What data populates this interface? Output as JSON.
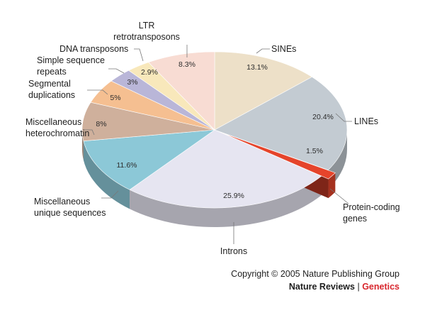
{
  "chart_data": {
    "type": "pie",
    "slices": [
      {
        "label": "SINEs",
        "value": 13.1,
        "value_label": "13.1%",
        "color": "#ede0c8"
      },
      {
        "label": "LINEs",
        "value": 20.4,
        "value_label": "20.4%",
        "color": "#c3cbd2"
      },
      {
        "label": "Protein-coding genes",
        "value": 1.5,
        "value_label": "1.5%",
        "color": "#e5442b"
      },
      {
        "label": "Introns",
        "value": 25.9,
        "value_label": "25.9%",
        "color": "#e6e5f1"
      },
      {
        "label": "Miscellaneous unique sequences",
        "value": 11.6,
        "value_label": "11.6%",
        "color": "#8cc8d7"
      },
      {
        "label": "Miscellaneous heterochromatin",
        "value": 8,
        "value_label": "8%",
        "color": "#cfb09c"
      },
      {
        "label": "Segmental duplications",
        "value": 5,
        "value_label": "5%",
        "color": "#f5bf91"
      },
      {
        "label": "Simple sequence repeats",
        "value": 3,
        "value_label": "3%",
        "color": "#b9b6d8"
      },
      {
        "label": "DNA transposons",
        "value": 2.9,
        "value_label": "2.9%",
        "color": "#f8e8bb"
      },
      {
        "label": "LTR retrotransposons",
        "value": 8.3,
        "value_label": "8.3%",
        "color": "#f8dcd3"
      }
    ],
    "style": "3d-tilted"
  },
  "credits": {
    "copyright": "Copyright © 2005 Nature Publishing Group",
    "journal": "Nature Reviews",
    "separator": "|",
    "section": "Genetics"
  }
}
